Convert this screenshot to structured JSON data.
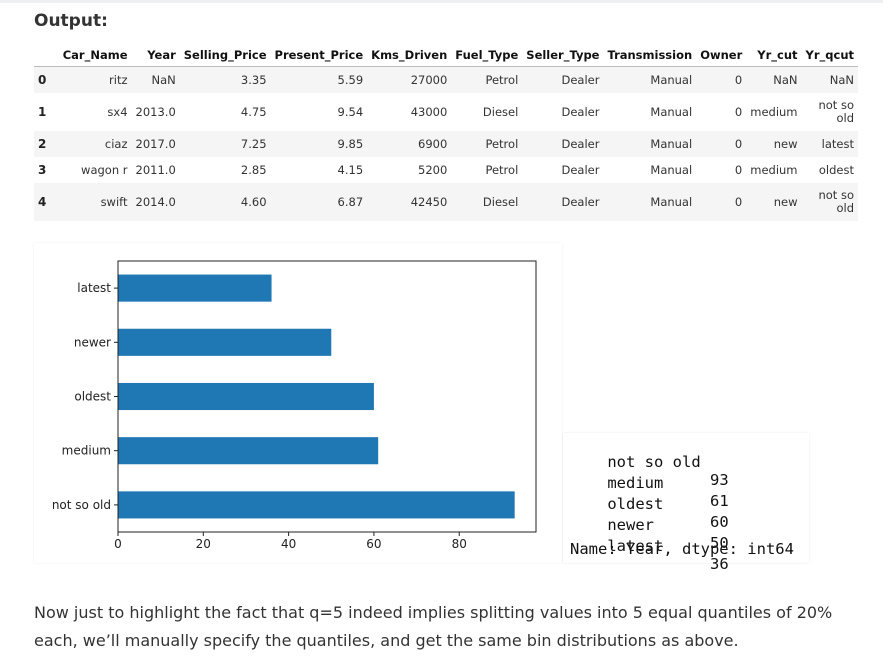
{
  "heading": "Output:",
  "dataframe": {
    "columns": [
      "",
      "Car_Name",
      "Year",
      "Selling_Price",
      "Present_Price",
      "Kms_Driven",
      "Fuel_Type",
      "Seller_Type",
      "Transmission",
      "Owner",
      "Yr_cut",
      "Yr_qcut"
    ],
    "rows": [
      [
        "0",
        "ritz",
        "NaN",
        "3.35",
        "5.59",
        "27000",
        "Petrol",
        "Dealer",
        "Manual",
        "0",
        "NaN",
        "NaN"
      ],
      [
        "1",
        "sx4",
        "2013.0",
        "4.75",
        "9.54",
        "43000",
        "Diesel",
        "Dealer",
        "Manual",
        "0",
        "medium",
        "not so old"
      ],
      [
        "2",
        "ciaz",
        "2017.0",
        "7.25",
        "9.85",
        "6900",
        "Petrol",
        "Dealer",
        "Manual",
        "0",
        "new",
        "latest"
      ],
      [
        "3",
        "wagon r",
        "2011.0",
        "2.85",
        "4.15",
        "5200",
        "Petrol",
        "Dealer",
        "Manual",
        "0",
        "medium",
        "oldest"
      ],
      [
        "4",
        "swift",
        "2014.0",
        "4.60",
        "6.87",
        "42450",
        "Diesel",
        "Dealer",
        "Manual",
        "0",
        "new",
        "not so old"
      ]
    ]
  },
  "chart_data": {
    "type": "bar",
    "orientation": "horizontal",
    "categories": [
      "not so old",
      "medium",
      "oldest",
      "newer",
      "latest"
    ],
    "values": [
      93,
      61,
      60,
      50,
      36
    ],
    "xlim": [
      0,
      98
    ],
    "xticks": [
      "0",
      "20",
      "40",
      "60",
      "80"
    ],
    "bar_color": "#1f77b4",
    "title": "",
    "xlabel": "",
    "ylabel": ""
  },
  "value_counts": {
    "items": [
      {
        "label": "not so old",
        "count": "93"
      },
      {
        "label": "medium",
        "count": "61"
      },
      {
        "label": "oldest",
        "count": "60"
      },
      {
        "label": "newer",
        "count": "50"
      },
      {
        "label": "latest",
        "count": "36"
      }
    ],
    "footer": "Name: Year, dtype: int64"
  },
  "paragraph": "Now just to highlight the fact that q=5 indeed implies splitting values into 5 equal quantiles of 20% each, we’ll manually specify the quantiles, and get the same bin distributions as above."
}
